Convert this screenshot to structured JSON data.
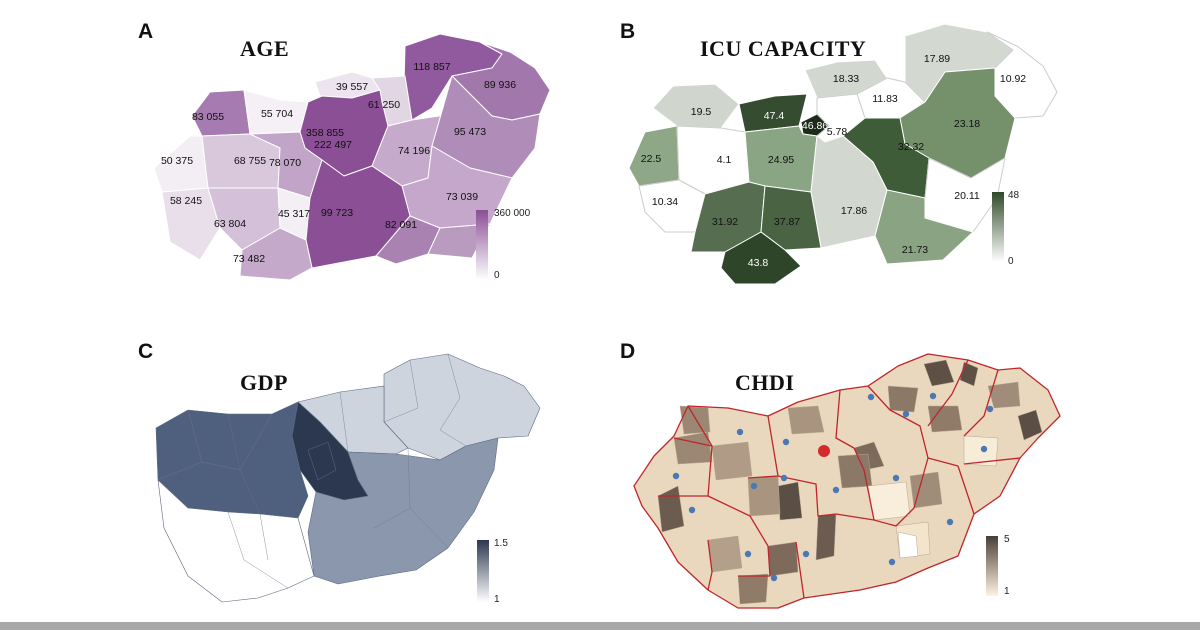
{
  "panels": [
    {
      "letter": "A",
      "title": "AGE",
      "legend": {
        "max": "360 000",
        "min": "0"
      },
      "colors": {
        "high": "#8a4f95",
        "low": "#ffffff"
      },
      "values": [
        "118 857",
        "89 936",
        "39 557",
        "61 250",
        "83 055",
        "55 704",
        "358 855",
        "222 497",
        "95 473",
        "50 375",
        "68 755",
        "78 070",
        "74 196",
        "58 245",
        "73 039",
        "45 317",
        "99 723",
        "63 804",
        "82 091",
        "73 482"
      ]
    },
    {
      "letter": "B",
      "title": "ICU CAPACITY",
      "legend": {
        "max": "48",
        "min": "0"
      },
      "colors": {
        "high": "#2f4a2a",
        "low": "#ffffff"
      },
      "values": [
        "17.89",
        "18.33",
        "10.92",
        "11.83",
        "19.5",
        "47.4",
        "46.86",
        "5.78",
        "23.18",
        "32.32",
        "22.5",
        "4.1",
        "24.95",
        "10.34",
        "20.11",
        "17.86",
        "31.92",
        "37.87",
        "21.73",
        "43.8"
      ]
    },
    {
      "letter": "C",
      "title": "GDP",
      "legend": {
        "max": "1.5",
        "min": "1"
      },
      "colors": {
        "high": "#2c3750",
        "low": "#ffffff"
      }
    },
    {
      "letter": "D",
      "title": "CHDI",
      "legend": {
        "max": "5",
        "min": "1"
      },
      "colors": {
        "high": "#4a3f36",
        "low": "#fdf3e1",
        "border": "#c0252b",
        "marker": "#4a78b5",
        "capital": "#d42a2a"
      }
    }
  ]
}
